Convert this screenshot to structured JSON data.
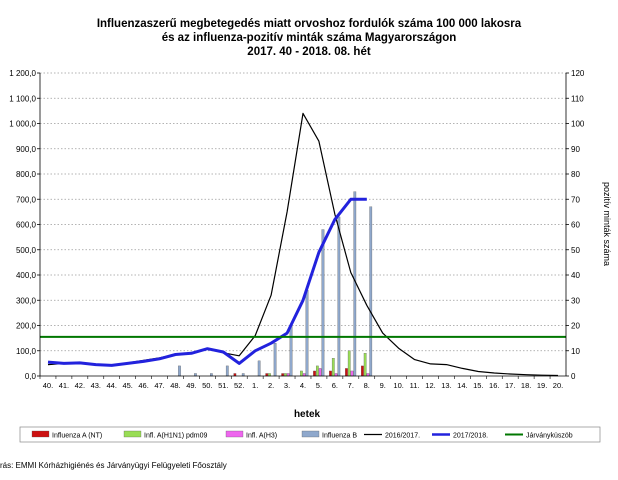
{
  "chart_data": {
    "type": "bar+line",
    "title": [
      "Influenzaszerű megbetegedés miatt orvoshoz fordulók száma 100 000 lakosra",
      "és az influenza-pozitív minták száma Magyarországon",
      "2017. 40 - 2018. 08. hét"
    ],
    "xlabel": "hetek",
    "ylabel_left": "",
    "ylabel_right": "pozitív minták száma",
    "ylim_left": [
      0,
      1200
    ],
    "ylim_right": [
      0,
      120
    ],
    "left_ticks": [
      "0,0",
      "100,0",
      "200,0",
      "300,0",
      "400,0",
      "500,0",
      "600,0",
      "700,0",
      "800,0",
      "900,0",
      "1 000,0",
      "1 100,0",
      "1 200,0"
    ],
    "right_ticks": [
      "0",
      "10",
      "20",
      "30",
      "40",
      "50",
      "60",
      "70",
      "80",
      "90",
      "100",
      "110",
      "120"
    ],
    "categories": [
      "40.",
      "41.",
      "42.",
      "43.",
      "44.",
      "45.",
      "46.",
      "47.",
      "48.",
      "49.",
      "50.",
      "51.",
      "52.",
      "1.",
      "2.",
      "3.",
      "4.",
      "5.",
      "6.",
      "7.",
      "8.",
      "9.",
      "10.",
      "11.",
      "12.",
      "13.",
      "14.",
      "15.",
      "16.",
      "17.",
      "18.",
      "19.",
      "20."
    ],
    "bar_series": [
      {
        "name": "Influenza A (NT)",
        "color": "#cc1111",
        "axis": "right",
        "values": [
          0,
          0,
          0,
          0,
          0,
          0,
          0,
          0,
          0,
          0,
          0,
          0,
          1,
          0,
          1,
          1,
          0,
          2,
          2,
          3,
          4,
          null,
          null,
          null,
          null,
          null,
          null,
          null,
          null,
          null,
          null,
          null,
          null
        ]
      },
      {
        "name": "Infl. A(H1N1) pdm09",
        "color": "#99dd55",
        "axis": "right",
        "values": [
          0,
          0,
          0,
          0,
          0,
          0,
          0,
          0,
          0,
          0,
          0,
          0,
          0,
          0,
          1,
          1,
          2,
          4,
          7,
          10,
          9,
          null,
          null,
          null,
          null,
          null,
          null,
          null,
          null,
          null,
          null,
          null,
          null
        ]
      },
      {
        "name": "Infl. A(H3)",
        "color": "#ee66ee",
        "axis": "right",
        "values": [
          0,
          0,
          0,
          0,
          0,
          0,
          0,
          0,
          0,
          0,
          0,
          0,
          0,
          0,
          0,
          1,
          1,
          3,
          1,
          2,
          1,
          null,
          null,
          null,
          null,
          null,
          null,
          null,
          null,
          null,
          null,
          null,
          null
        ]
      },
      {
        "name": "Influenza B",
        "color": "#8fa8cc",
        "axis": "right",
        "values": [
          0,
          0,
          0,
          0,
          0,
          0,
          0,
          0,
          4,
          1,
          1,
          4,
          1,
          6,
          13,
          20,
          34,
          58,
          63,
          73,
          67,
          null,
          null,
          null,
          null,
          null,
          null,
          null,
          null,
          null,
          null,
          null,
          null
        ]
      }
    ],
    "line_series": [
      {
        "name": "2016/2017.",
        "color": "#000000",
        "width": 1.2,
        "axis": "left",
        "values": [
          45,
          50,
          52,
          45,
          40,
          52,
          62,
          72,
          85,
          90,
          108,
          92,
          80,
          160,
          320,
          650,
          1040,
          930,
          640,
          410,
          280,
          170,
          110,
          65,
          48,
          45,
          30,
          18,
          12,
          8,
          5,
          3,
          2
        ]
      },
      {
        "name": "2017/2018.",
        "color": "#2222dd",
        "width": 3,
        "axis": "left",
        "values": [
          55,
          50,
          52,
          45,
          42,
          50,
          58,
          68,
          85,
          90,
          108,
          95,
          50,
          100,
          130,
          170,
          300,
          490,
          620,
          700,
          700,
          null,
          null,
          null,
          null,
          null,
          null,
          null,
          null,
          null,
          null,
          null,
          null
        ]
      },
      {
        "name": "Járványküszöb",
        "color": "#007700",
        "width": 2,
        "axis": "left",
        "values": [
          155,
          155,
          155,
          155,
          155,
          155,
          155,
          155,
          155,
          155,
          155,
          155,
          155,
          155,
          155,
          155,
          155,
          155,
          155,
          155,
          155,
          155,
          155,
          155,
          155,
          155,
          155,
          155,
          155,
          155,
          155,
          155,
          155
        ]
      }
    ],
    "grid": "horizontal dotted",
    "legend_position": "bottom"
  },
  "source_text": "rás: EMMI Kórházhigiénés és Járványügyi Felügyeleti Főosztály"
}
